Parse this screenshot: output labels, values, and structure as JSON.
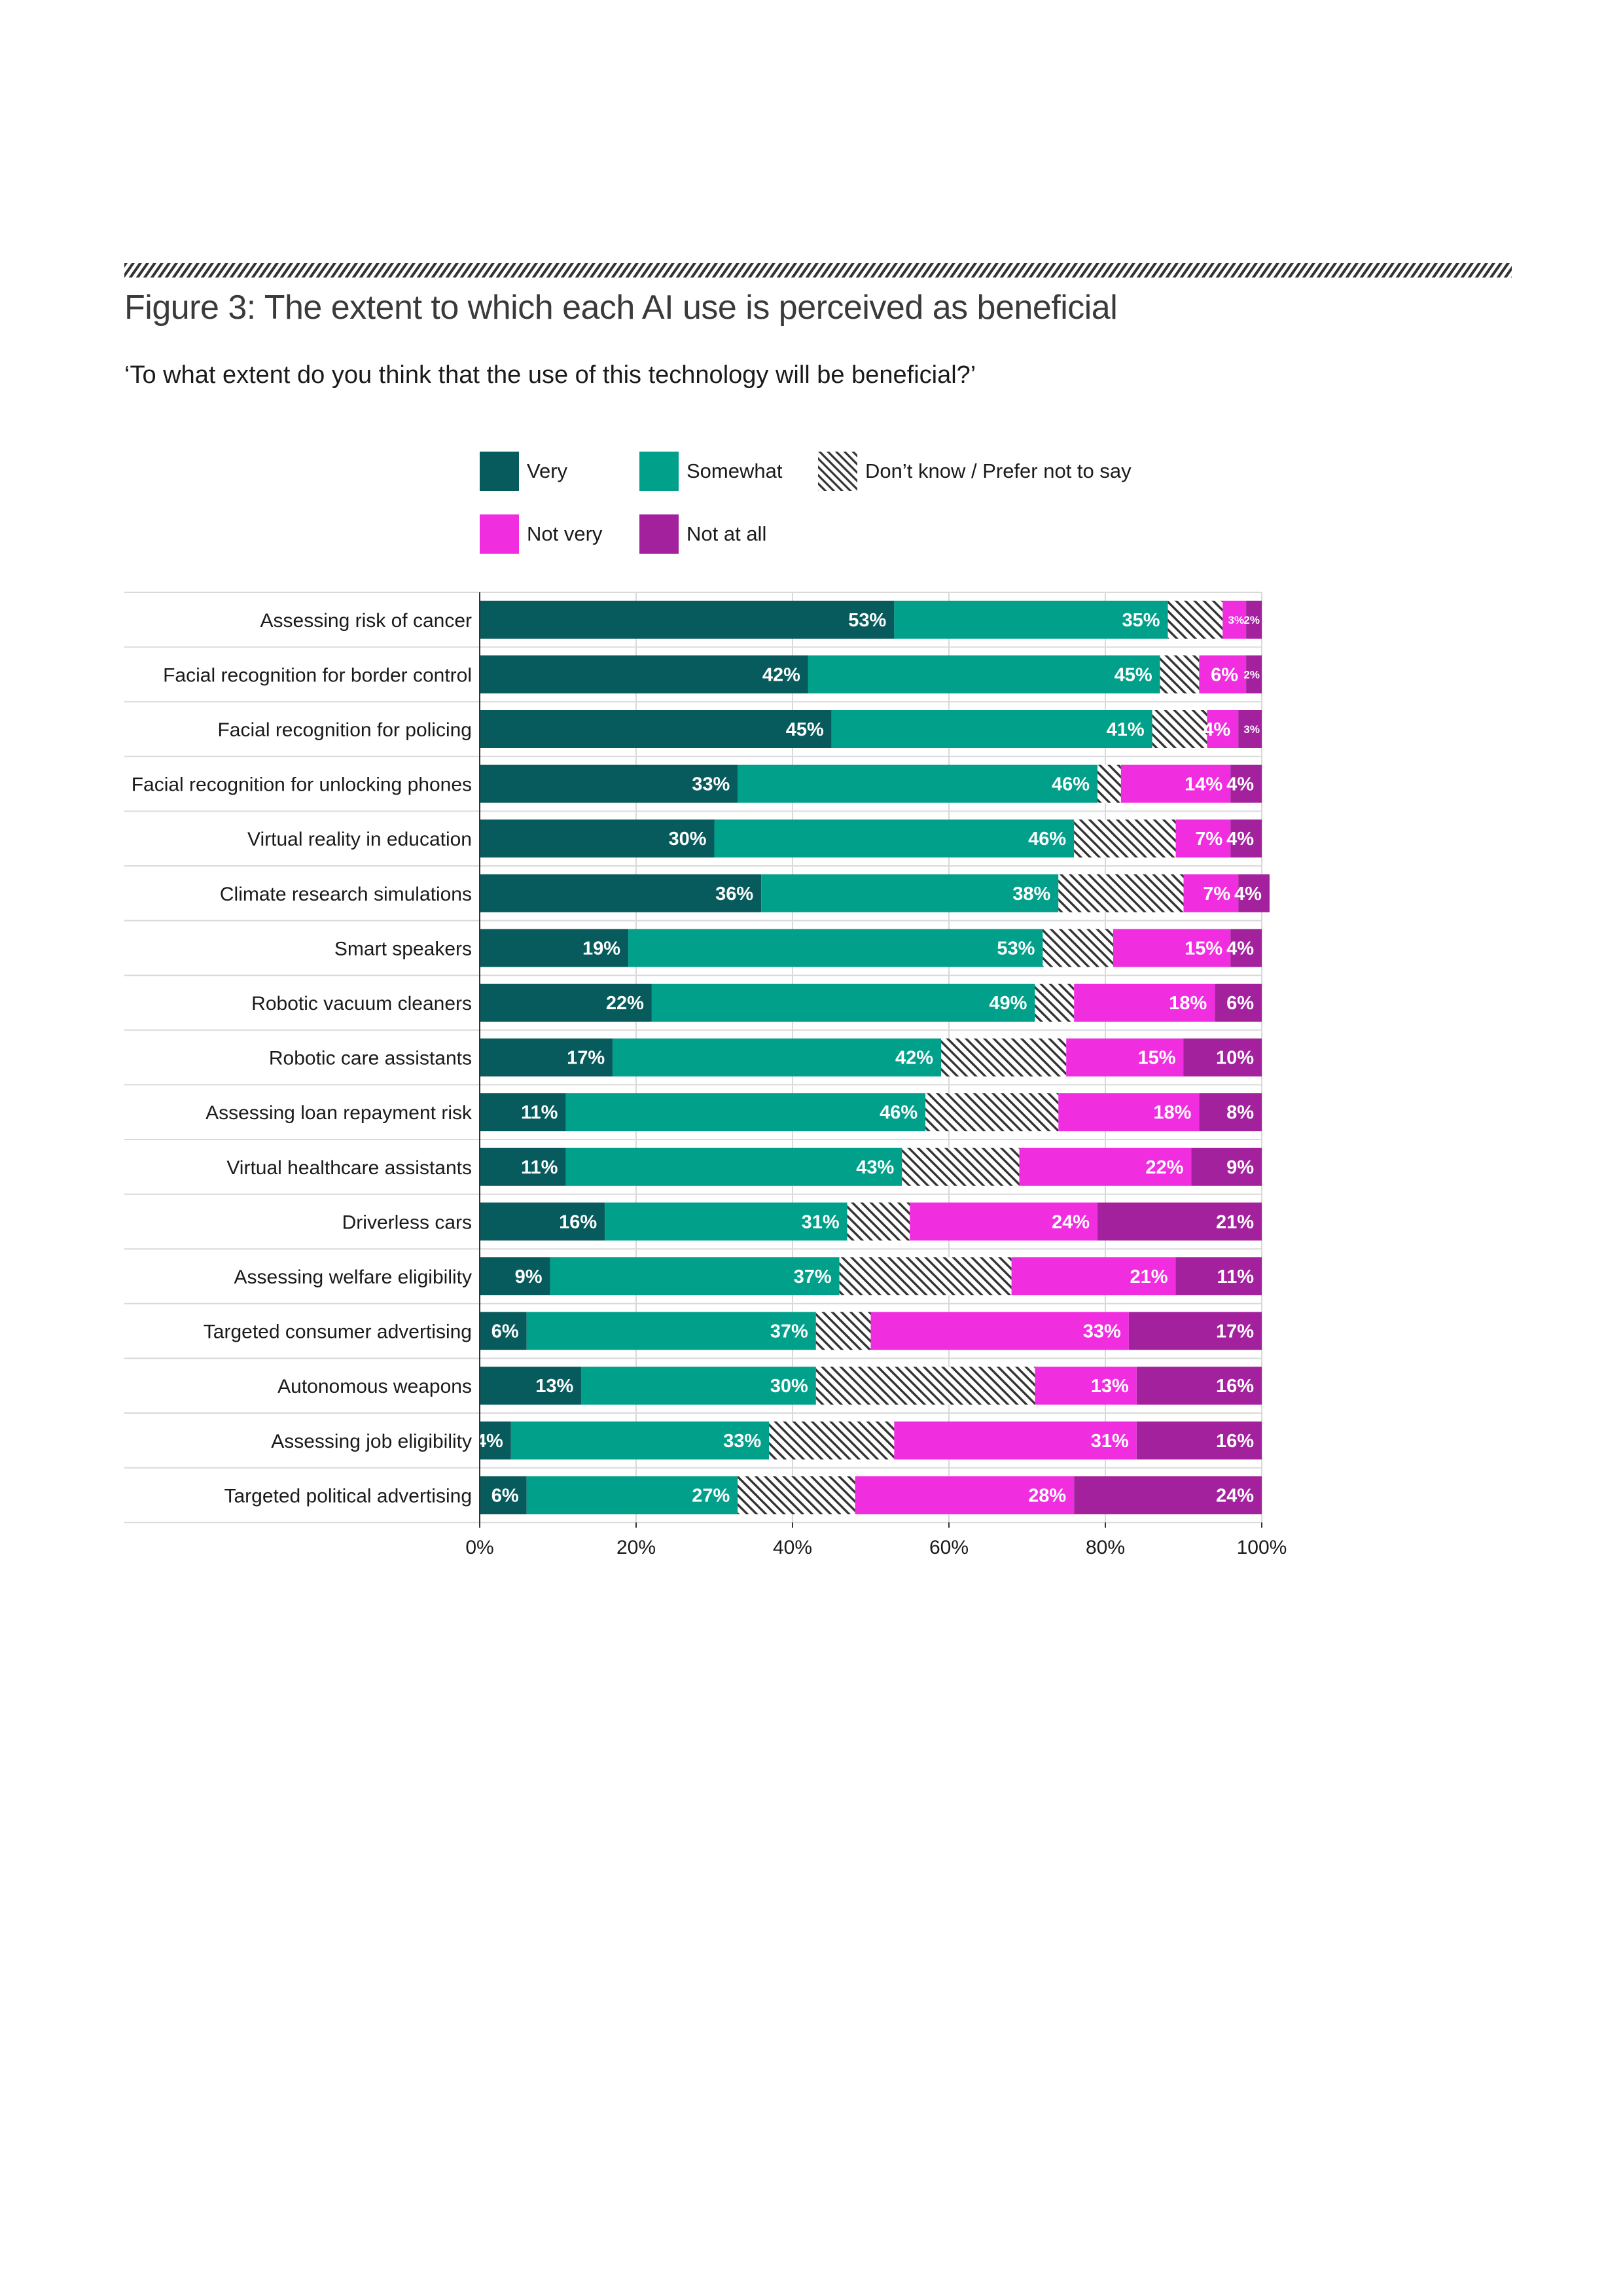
{
  "page": {
    "title": "Figure 3: The extent to which each AI use is perceived as beneficial",
    "subtitle": "‘To what extent do you think that the use of this technology will be beneficial?’"
  },
  "legend": {
    "very": "Very",
    "somewhat": "Somewhat",
    "dont_know": "Don’t know / Prefer not to say",
    "not_very": "Not very",
    "not_at_all": "Not at all"
  },
  "colors": {
    "very": "#075B5C",
    "somewhat": "#00A08A",
    "dont_know_line": "#333333",
    "not_very": "#F12DE0",
    "not_at_all": "#A3219D"
  },
  "chart_data": {
    "type": "bar",
    "orientation": "horizontal",
    "stacked": true,
    "xlim": [
      0,
      100
    ],
    "x_ticks": [
      "0%",
      "20%",
      "40%",
      "60%",
      "80%",
      "100%"
    ],
    "grid": true,
    "legend_position": "top",
    "categories": [
      "Assessing risk of cancer",
      "Facial recognition for border control",
      "Facial recognition for policing",
      "Facial recognition for unlocking phones",
      "Virtual reality in education",
      "Climate research simulations",
      "Smart speakers",
      "Robotic vacuum cleaners",
      "Robotic care assistants",
      "Assessing loan repayment risk",
      "Virtual healthcare assistants",
      "Driverless cars",
      "Assessing welfare eligibility",
      "Targeted consumer advertising",
      "Autonomous weapons",
      "Assessing job eligibility",
      "Targeted political advertising"
    ],
    "series": [
      {
        "name": "Very",
        "key": "very",
        "values": [
          53,
          42,
          45,
          33,
          30,
          36,
          19,
          22,
          17,
          11,
          11,
          16,
          9,
          6,
          13,
          4,
          6
        ]
      },
      {
        "name": "Somewhat",
        "key": "somewhat",
        "values": [
          35,
          45,
          41,
          46,
          46,
          38,
          53,
          49,
          42,
          46,
          43,
          31,
          37,
          37,
          30,
          33,
          27
        ]
      },
      {
        "name": "Don’t know / Prefer not to say",
        "key": "dont_know",
        "values": [
          7,
          5,
          7,
          3,
          13,
          16,
          9,
          5,
          16,
          17,
          15,
          8,
          22,
          7,
          28,
          16,
          15
        ]
      },
      {
        "name": "Not very",
        "key": "not_very",
        "values": [
          3,
          6,
          4,
          14,
          7,
          7,
          15,
          18,
          15,
          18,
          22,
          24,
          21,
          33,
          13,
          31,
          28
        ]
      },
      {
        "name": "Not at all",
        "key": "not_at_all",
        "values": [
          2,
          2,
          3,
          4,
          4,
          4,
          4,
          6,
          10,
          8,
          9,
          21,
          11,
          17,
          16,
          16,
          24
        ]
      }
    ],
    "labelled_series": [
      "very",
      "somewhat",
      "not_very",
      "not_at_all"
    ]
  }
}
